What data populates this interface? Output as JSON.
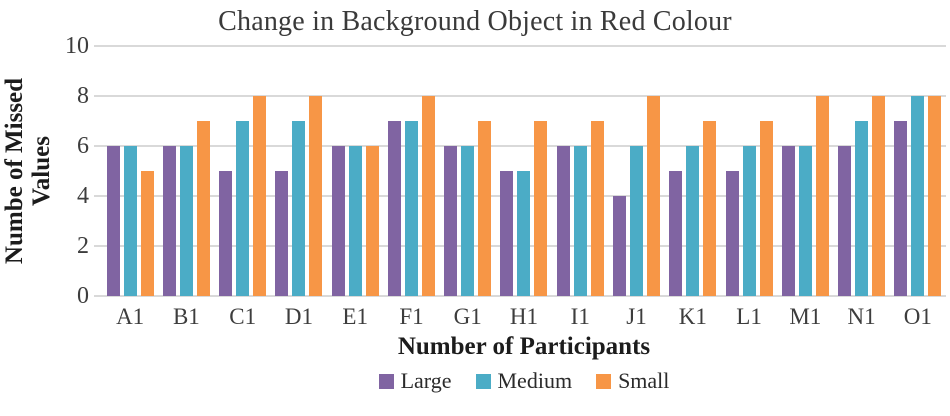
{
  "chart_data": {
    "type": "bar",
    "title": "Change in Background Object in Red Colour",
    "xlabel": "Number of Participants",
    "ylabel": "Numbe of Missed Values",
    "categories": [
      "A1",
      "B1",
      "C1",
      "D1",
      "E1",
      "F1",
      "G1",
      "H1",
      "I1",
      "J1",
      "K1",
      "L1",
      "M1",
      "N1",
      "O1"
    ],
    "series": [
      {
        "name": "Large",
        "color": "#8064A2",
        "values": [
          6,
          6,
          5,
          5,
          6,
          7,
          6,
          5,
          6,
          4,
          5,
          5,
          6,
          6,
          7
        ]
      },
      {
        "name": "Medium",
        "color": "#4BACC6",
        "values": [
          6,
          6,
          7,
          7,
          6,
          7,
          6,
          5,
          6,
          6,
          6,
          6,
          6,
          7,
          8
        ]
      },
      {
        "name": "Small",
        "color": "#F79646",
        "values": [
          5,
          7,
          8,
          8,
          6,
          8,
          7,
          7,
          7,
          8,
          7,
          7,
          8,
          8,
          8
        ]
      }
    ],
    "ylim": [
      0,
      10
    ],
    "y_ticks": [
      0,
      2,
      4,
      6,
      8,
      10
    ],
    "gridlines": true,
    "legend_position": "bottom",
    "gridline_color": "#d9d9d9"
  }
}
